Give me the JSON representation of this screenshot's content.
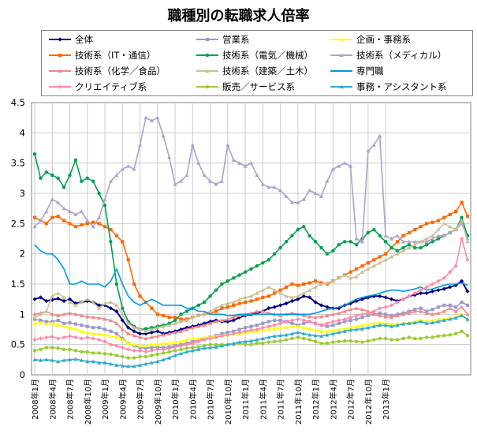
{
  "chart_data": {
    "type": "line",
    "title": "職種別の転職求人倍率",
    "ylim": [
      0,
      4.5
    ],
    "yticks": [
      "0",
      "0.5",
      "1",
      "1.5",
      "2",
      "2.5",
      "3",
      "3.5",
      "4",
      "4.5"
    ],
    "xtick_labels": [
      "2008年1月",
      "2008年4月",
      "2008年7月",
      "2008年10月",
      "2009年1月",
      "2009年4月",
      "2009年7月",
      "2009年10月",
      "2010年1月",
      "2010年4月",
      "2010年7月",
      "2010年10月",
      "2011年1月",
      "2011年4月",
      "2011年7月",
      "2011年10月",
      "2012年1月",
      "2012年4月",
      "2012年7月",
      "2012年10月",
      "2013年1月"
    ],
    "series": [
      {
        "name": "全体",
        "color": "#000080",
        "marker": "diamond",
        "values": [
          1.25,
          1.28,
          1.22,
          1.24,
          1.26,
          1.22,
          1.25,
          1.18,
          1.2,
          1.22,
          1.2,
          1.15,
          1.15,
          1.1,
          1.05,
          0.9,
          0.78,
          0.72,
          0.68,
          0.68,
          0.7,
          0.72,
          0.68,
          0.7,
          0.72,
          0.75,
          0.78,
          0.8,
          0.82,
          0.85,
          0.88,
          0.9,
          0.88,
          0.88,
          0.9,
          0.95,
          0.98,
          1.0,
          1.02,
          1.05,
          1.1,
          1.12,
          1.15,
          1.18,
          1.22,
          1.25,
          1.3,
          1.28,
          1.2,
          1.15,
          1.12,
          1.1,
          1.1,
          1.15,
          1.18,
          1.22,
          1.25,
          1.28,
          1.3,
          1.3,
          1.28,
          1.25,
          1.22,
          1.25,
          1.3,
          1.32,
          1.35,
          1.35,
          1.38,
          1.4,
          1.42,
          1.45,
          1.48,
          1.55,
          1.38
        ]
      },
      {
        "name": "営業系",
        "color": "#9999cc",
        "marker": "square",
        "values": [
          0.92,
          0.9,
          0.88,
          0.88,
          0.9,
          0.85,
          0.86,
          0.84,
          0.82,
          0.8,
          0.78,
          0.78,
          0.75,
          0.72,
          0.68,
          0.6,
          0.52,
          0.48,
          0.45,
          0.44,
          0.45,
          0.46,
          0.45,
          0.46,
          0.48,
          0.5,
          0.52,
          0.55,
          0.58,
          0.6,
          0.62,
          0.65,
          0.68,
          0.7,
          0.72,
          0.75,
          0.78,
          0.8,
          0.82,
          0.85,
          0.88,
          0.9,
          0.9,
          0.88,
          0.85,
          0.82,
          0.85,
          0.88,
          0.85,
          0.82,
          0.8,
          0.82,
          0.85,
          0.88,
          0.9,
          0.92,
          0.95,
          0.98,
          1.0,
          1.02,
          1.0,
          0.98,
          1.0,
          1.02,
          1.05,
          1.08,
          1.1,
          1.05,
          1.08,
          1.12,
          1.15,
          1.15,
          1.12,
          1.2,
          1.15
        ]
      },
      {
        "name": "企画・事務系",
        "color": "#ffff00",
        "marker": "triangle",
        "values": [
          0.85,
          0.86,
          0.84,
          0.85,
          0.82,
          0.8,
          0.78,
          0.76,
          0.72,
          0.7,
          0.68,
          0.68,
          0.66,
          0.64,
          0.62,
          0.58,
          0.52,
          0.5,
          0.48,
          0.48,
          0.5,
          0.5,
          0.52,
          0.52,
          0.55,
          0.55,
          0.58,
          0.6,
          0.6,
          0.62,
          0.62,
          0.64,
          0.65,
          0.66,
          0.68,
          0.68,
          0.7,
          0.72,
          0.72,
          0.74,
          0.75,
          0.76,
          0.78,
          0.78,
          0.8,
          0.8,
          0.78,
          0.76,
          0.74,
          0.72,
          0.72,
          0.74,
          0.75,
          0.76,
          0.78,
          0.8,
          0.82,
          0.84,
          0.85,
          0.86,
          0.85,
          0.84,
          0.84,
          0.85,
          0.86,
          0.88,
          0.9,
          0.88,
          0.9,
          0.92,
          0.92,
          0.94,
          0.95,
          1.0,
          0.9
        ]
      },
      {
        "name": "技術系（IT・通信）",
        "color": "#ff6600",
        "marker": "square",
        "values": [
          2.6,
          2.55,
          2.5,
          2.6,
          2.62,
          2.55,
          2.5,
          2.45,
          2.48,
          2.5,
          2.52,
          2.5,
          2.45,
          2.4,
          2.3,
          2.2,
          1.9,
          1.5,
          1.3,
          1.2,
          1.1,
          1.0,
          0.98,
          0.95,
          0.95,
          0.92,
          0.92,
          0.95,
          0.98,
          1.0,
          1.02,
          1.05,
          1.1,
          1.12,
          1.15,
          1.18,
          1.2,
          1.22,
          1.25,
          1.28,
          1.3,
          1.35,
          1.4,
          1.45,
          1.5,
          1.48,
          1.5,
          1.52,
          1.55,
          1.52,
          1.5,
          1.55,
          1.6,
          1.65,
          1.7,
          1.75,
          1.8,
          1.85,
          1.9,
          1.95,
          2.0,
          2.1,
          2.2,
          2.3,
          2.35,
          2.4,
          2.45,
          2.5,
          2.52,
          2.55,
          2.6,
          2.65,
          2.7,
          2.85,
          2.62
        ]
      },
      {
        "name": "技術系（電気／機械）",
        "color": "#00a050",
        "marker": "circle",
        "values": [
          3.65,
          3.25,
          3.35,
          3.3,
          3.25,
          3.1,
          3.3,
          3.55,
          3.2,
          3.25,
          3.2,
          3.0,
          2.8,
          2.2,
          1.5,
          1.1,
          0.88,
          0.8,
          0.75,
          0.76,
          0.78,
          0.8,
          0.82,
          0.85,
          0.9,
          1.0,
          1.05,
          1.1,
          1.15,
          1.2,
          1.3,
          1.4,
          1.5,
          1.55,
          1.6,
          1.65,
          1.7,
          1.75,
          1.8,
          1.85,
          1.9,
          2.0,
          2.1,
          2.2,
          2.3,
          2.4,
          2.45,
          2.3,
          2.2,
          2.1,
          2.0,
          2.05,
          2.15,
          2.2,
          2.2,
          2.15,
          2.25,
          2.35,
          2.4,
          2.3,
          2.2,
          2.1,
          2.05,
          2.1,
          2.15,
          2.1,
          2.1,
          2.15,
          2.2,
          2.25,
          2.3,
          2.35,
          2.4,
          2.6,
          2.3
        ]
      },
      {
        "name": "技術系（メディカル）",
        "color": "#b0a0cc",
        "marker": "triangle",
        "values": [
          2.45,
          2.55,
          2.7,
          2.9,
          2.85,
          2.75,
          2.7,
          2.65,
          2.7,
          2.55,
          2.45,
          2.6,
          2.9,
          3.2,
          3.3,
          3.4,
          3.45,
          3.4,
          3.8,
          4.25,
          4.2,
          4.25,
          3.95,
          3.6,
          3.15,
          3.2,
          3.3,
          3.8,
          3.5,
          3.3,
          3.2,
          3.15,
          3.2,
          3.8,
          3.55,
          3.5,
          3.45,
          3.5,
          3.3,
          3.15,
          3.1,
          3.1,
          3.05,
          2.95,
          2.85,
          2.85,
          2.9,
          3.05,
          3.0,
          2.95,
          3.2,
          3.4,
          3.45,
          3.5,
          3.45,
          2.25,
          2.2,
          3.7,
          3.8,
          3.95,
          2.3,
          2.25,
          2.3,
          2.2,
          2.2,
          2.2,
          2.2,
          2.2,
          2.25,
          2.3,
          2.3,
          2.35,
          2.4,
          2.5,
          2.25
        ]
      },
      {
        "name": "技術系（化学／食品）",
        "color": "#ee8888",
        "marker": "triangle",
        "values": [
          1.0,
          1.02,
          1.05,
          1.0,
          0.98,
          1.0,
          1.02,
          1.0,
          0.98,
          0.96,
          0.95,
          0.94,
          0.92,
          0.9,
          0.85,
          0.75,
          0.68,
          0.65,
          0.62,
          0.6,
          0.62,
          0.64,
          0.66,
          0.68,
          0.7,
          0.72,
          0.75,
          0.78,
          0.8,
          0.82,
          0.85,
          0.88,
          0.9,
          0.92,
          0.95,
          0.98,
          1.0,
          1.02,
          1.05,
          1.05,
          1.02,
          1.0,
          0.98,
          1.0,
          1.02,
          1.0,
          0.98,
          0.96,
          0.95,
          0.96,
          0.98,
          1.0,
          1.02,
          1.05,
          1.08,
          1.1,
          1.08,
          1.05,
          1.0,
          0.98,
          0.96,
          0.95,
          0.98,
          1.0,
          1.02,
          1.05,
          1.05,
          1.02,
          1.0,
          1.02,
          1.05,
          1.1,
          1.05,
          1.12,
          1.0
        ]
      },
      {
        "name": "技術系（建築／土木）",
        "color": "#c8c098",
        "marker": "triangle",
        "values": [
          0.95,
          1.0,
          1.05,
          1.3,
          1.35,
          1.28,
          1.2,
          1.15,
          1.2,
          1.25,
          1.2,
          1.1,
          1.18,
          1.2,
          1.15,
          1.0,
          0.85,
          0.78,
          0.75,
          0.72,
          0.75,
          0.78,
          0.8,
          0.82,
          0.85,
          0.88,
          0.9,
          0.95,
          0.98,
          1.0,
          1.05,
          1.1,
          1.15,
          1.18,
          1.2,
          1.25,
          1.28,
          1.3,
          1.35,
          1.4,
          1.45,
          1.4,
          1.35,
          1.3,
          1.28,
          1.3,
          1.35,
          1.4,
          1.45,
          1.5,
          1.52,
          1.55,
          1.6,
          1.65,
          1.6,
          1.62,
          1.7,
          1.75,
          1.8,
          1.85,
          1.9,
          1.95,
          2.0,
          2.05,
          2.1,
          2.15,
          2.2,
          2.25,
          2.3,
          2.4,
          2.5,
          2.45,
          2.4,
          2.55,
          2.2
        ]
      },
      {
        "name": "専門職",
        "color": "#0099dd",
        "marker": "none",
        "values": [
          2.15,
          2.05,
          2.0,
          2.0,
          1.9,
          1.75,
          1.5,
          1.5,
          1.55,
          1.5,
          1.5,
          1.5,
          1.45,
          1.55,
          1.75,
          1.5,
          1.3,
          1.2,
          1.15,
          1.2,
          1.25,
          1.2,
          1.15,
          1.15,
          1.15,
          1.15,
          1.1,
          1.1,
          1.05,
          1.05,
          1.0,
          1.0,
          1.0,
          0.98,
          0.98,
          1.0,
          1.0,
          1.0,
          1.0,
          1.0,
          1.0,
          1.0,
          1.0,
          1.0,
          1.0,
          1.0,
          1.0,
          1.0,
          1.02,
          1.05,
          1.08,
          1.1,
          1.12,
          1.15,
          1.2,
          1.25,
          1.28,
          1.3,
          1.32,
          1.35,
          1.38,
          1.4,
          1.4,
          1.38,
          1.4,
          1.42,
          1.45,
          1.4,
          1.42,
          1.45,
          1.48,
          1.5,
          1.5,
          1.52,
          1.48
        ]
      },
      {
        "name": "クリエイティブ系",
        "color": "#ff88aa",
        "marker": "diamond",
        "values": [
          0.58,
          0.6,
          0.62,
          0.63,
          0.6,
          0.62,
          0.64,
          0.62,
          0.6,
          0.62,
          0.6,
          0.58,
          0.55,
          0.5,
          0.48,
          0.45,
          0.42,
          0.4,
          0.4,
          0.38,
          0.4,
          0.42,
          0.42,
          0.44,
          0.46,
          0.48,
          0.5,
          0.52,
          0.55,
          0.58,
          0.6,
          0.62,
          0.64,
          0.66,
          0.68,
          0.7,
          0.72,
          0.74,
          0.75,
          0.78,
          0.8,
          0.82,
          0.85,
          0.88,
          0.9,
          0.92,
          0.9,
          0.88,
          0.85,
          0.82,
          0.85,
          0.88,
          0.9,
          0.92,
          0.95,
          0.98,
          1.0,
          1.02,
          1.05,
          1.1,
          1.12,
          1.15,
          1.2,
          1.25,
          1.3,
          1.35,
          1.4,
          1.45,
          1.5,
          1.55,
          1.6,
          1.7,
          1.8,
          2.25,
          1.9
        ]
      },
      {
        "name": "販売／サービス系",
        "color": "#99cc33",
        "marker": "circle",
        "values": [
          0.4,
          0.42,
          0.45,
          0.45,
          0.44,
          0.42,
          0.42,
          0.4,
          0.38,
          0.38,
          0.36,
          0.36,
          0.35,
          0.34,
          0.32,
          0.3,
          0.28,
          0.28,
          0.3,
          0.3,
          0.32,
          0.34,
          0.36,
          0.38,
          0.4,
          0.42,
          0.44,
          0.45,
          0.46,
          0.48,
          0.5,
          0.5,
          0.5,
          0.5,
          0.5,
          0.52,
          0.5,
          0.5,
          0.52,
          0.52,
          0.54,
          0.55,
          0.56,
          0.58,
          0.6,
          0.62,
          0.6,
          0.58,
          0.55,
          0.52,
          0.52,
          0.54,
          0.55,
          0.56,
          0.56,
          0.55,
          0.54,
          0.56,
          0.58,
          0.6,
          0.6,
          0.58,
          0.58,
          0.6,
          0.62,
          0.6,
          0.6,
          0.62,
          0.62,
          0.64,
          0.65,
          0.66,
          0.68,
          0.72,
          0.65
        ]
      },
      {
        "name": "事務・アシスタント系",
        "color": "#33aacc",
        "marker": "triangle",
        "values": [
          0.25,
          0.24,
          0.25,
          0.24,
          0.22,
          0.24,
          0.25,
          0.26,
          0.24,
          0.22,
          0.22,
          0.2,
          0.2,
          0.18,
          0.16,
          0.15,
          0.14,
          0.14,
          0.16,
          0.18,
          0.2,
          0.22,
          0.25,
          0.28,
          0.32,
          0.35,
          0.38,
          0.4,
          0.42,
          0.44,
          0.45,
          0.46,
          0.48,
          0.5,
          0.52,
          0.54,
          0.55,
          0.56,
          0.58,
          0.6,
          0.62,
          0.64,
          0.65,
          0.66,
          0.68,
          0.7,
          0.68,
          0.66,
          0.65,
          0.64,
          0.66,
          0.68,
          0.7,
          0.72,
          0.74,
          0.75,
          0.76,
          0.78,
          0.8,
          0.82,
          0.82,
          0.8,
          0.82,
          0.84,
          0.85,
          0.86,
          0.88,
          0.85,
          0.86,
          0.88,
          0.9,
          0.92,
          0.94,
          0.98,
          0.92
        ]
      }
    ]
  }
}
